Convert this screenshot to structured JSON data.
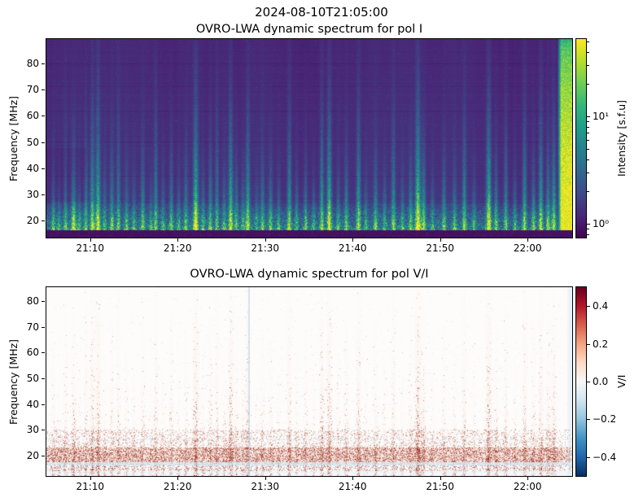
{
  "figure": {
    "suptitle": "2024-08-10T21:05:00",
    "background": "#ffffff",
    "text_color": "#000000"
  },
  "panels": [
    {
      "title": "OVRO-LWA dynamic spectrum for pol I",
      "ylabel": "Frequency [MHz]",
      "yticks": [
        80,
        70,
        60,
        50,
        40,
        30,
        20
      ],
      "xticks": [
        "21:10",
        "21:20",
        "21:30",
        "21:40",
        "21:50",
        "22:00"
      ],
      "colorbar": {
        "label": "Intensity [s.f.u]",
        "scale": "log",
        "ticks": [
          {
            "label": "10¹",
            "value": 10
          },
          {
            "label": "10⁰",
            "value": 1
          }
        ],
        "minor_tick_values": [
          0.8,
          0.9,
          2,
          3,
          4,
          5,
          6,
          7,
          8,
          9,
          20,
          30,
          40,
          50
        ],
        "colormap": "viridis"
      }
    },
    {
      "title": "OVRO-LWA dynamic spectrum for pol V/I",
      "ylabel": "Frequency [MHz]",
      "yticks": [
        80,
        70,
        60,
        50,
        40,
        30,
        20
      ],
      "xticks": [
        "21:10",
        "21:20",
        "21:30",
        "21:40",
        "21:50",
        "22:00"
      ],
      "colorbar": {
        "label": "V/I",
        "scale": "linear",
        "ticks": [
          {
            "label": "0.4",
            "value": 0.4
          },
          {
            "label": "0.2",
            "value": 0.2
          },
          {
            "label": "0.0",
            "value": 0.0
          },
          {
            "label": "−0.2",
            "value": -0.2
          },
          {
            "label": "−0.4",
            "value": -0.4
          }
        ],
        "minor_tick_values": [],
        "colormap": "RdBu_r"
      }
    }
  ],
  "colormaps": {
    "viridis": [
      "#440154",
      "#482878",
      "#3e4a89",
      "#31688e",
      "#26828e",
      "#1f9e89",
      "#35b779",
      "#6ece58",
      "#b5de2b",
      "#fde725"
    ],
    "RdBu_r": [
      "#053061",
      "#2166ac",
      "#4393c3",
      "#92c5de",
      "#d1e5f0",
      "#f7f7f7",
      "#fddbc7",
      "#f4a582",
      "#d6604d",
      "#b2182b",
      "#67001f"
    ]
  },
  "chart_data": [
    {
      "type": "heatmap",
      "title": "OVRO-LWA dynamic spectrum for pol I",
      "x_axis": {
        "start": "21:05",
        "end": "22:05",
        "ticks": [
          "21:10",
          "21:20",
          "21:30",
          "21:40",
          "21:50",
          "22:00"
        ],
        "tick_interval_min": 10
      },
      "y_axis": {
        "label": "Frequency [MHz]",
        "min": 13.5,
        "max": 89.3,
        "ticks": [
          20,
          30,
          40,
          50,
          60,
          70,
          80
        ]
      },
      "color_axis": {
        "label": "Intensity [s.f.u]",
        "scale": "log",
        "vmin": 0.74,
        "vmax": 52,
        "colormap": "viridis",
        "labeled_ticks": [
          1,
          10
        ]
      },
      "features": {
        "description": "groups of solar radio bursts: vertical teal/green streaks rising from low frequencies; bright yellow-green speckle band below ~30 MHz; dark masked band at lowest frequencies; strong broadband yellow emission at right edge",
        "background_intensity_sfu": 1.2,
        "active_band_mhz": [
          15,
          30
        ],
        "masked_band_mhz": [
          13.5,
          15.5
        ],
        "bright_feature": {
          "t_start_min": 58.3,
          "t_end_min": 60.1,
          "freq_range_mhz": [
            15.5,
            89.3
          ],
          "strength": 1.0
        },
        "bursts_t_min_strength_heightfrac": [
          [
            0.7,
            0.55,
            0.45
          ],
          [
            1.4,
            0.45,
            0.3
          ],
          [
            2.1,
            0.5,
            0.6
          ],
          [
            3.1,
            0.85,
            0.55
          ],
          [
            3.7,
            0.5,
            0.35
          ],
          [
            4.5,
            0.55,
            0.7
          ],
          [
            5.2,
            0.7,
            0.9
          ],
          [
            5.9,
            0.8,
            0.95
          ],
          [
            6.6,
            0.5,
            0.4
          ],
          [
            7.4,
            0.6,
            0.55
          ],
          [
            8.2,
            0.5,
            0.8
          ],
          [
            9.1,
            0.55,
            0.4
          ],
          [
            10.0,
            0.5,
            0.35
          ],
          [
            11.0,
            0.6,
            0.55
          ],
          [
            11.9,
            0.5,
            0.3
          ],
          [
            12.5,
            0.55,
            0.9
          ],
          [
            13.3,
            0.5,
            0.4
          ],
          [
            14.2,
            0.55,
            0.6
          ],
          [
            15.1,
            0.5,
            0.35
          ],
          [
            15.9,
            0.6,
            0.5
          ],
          [
            17.0,
            0.9,
            0.95
          ],
          [
            17.9,
            0.55,
            0.4
          ],
          [
            18.7,
            0.6,
            0.6
          ],
          [
            19.4,
            0.5,
            0.85
          ],
          [
            20.3,
            0.55,
            0.4
          ],
          [
            21.0,
            0.8,
            0.95
          ],
          [
            21.7,
            0.6,
            0.5
          ],
          [
            22.4,
            0.55,
            0.4
          ],
          [
            23.0,
            0.7,
            0.9
          ],
          [
            24.0,
            0.5,
            0.3
          ],
          [
            24.7,
            0.55,
            0.5
          ],
          [
            25.6,
            0.6,
            0.45
          ],
          [
            26.5,
            0.5,
            0.35
          ],
          [
            27.7,
            0.65,
            0.85
          ],
          [
            28.6,
            0.5,
            0.4
          ],
          [
            29.6,
            0.55,
            0.5
          ],
          [
            30.5,
            0.5,
            0.35
          ],
          [
            31.4,
            0.65,
            0.9
          ],
          [
            32.3,
            0.85,
            0.95
          ],
          [
            33.3,
            0.5,
            0.4
          ],
          [
            34.2,
            0.6,
            0.55
          ],
          [
            35.6,
            0.7,
            0.85
          ],
          [
            36.5,
            0.5,
            0.35
          ],
          [
            37.6,
            0.6,
            0.5
          ],
          [
            38.6,
            0.5,
            0.4
          ],
          [
            39.6,
            0.6,
            0.75
          ],
          [
            40.7,
            0.5,
            0.35
          ],
          [
            41.6,
            0.6,
            0.5
          ],
          [
            42.4,
            1.0,
            1.0
          ],
          [
            43.1,
            0.7,
            0.6
          ],
          [
            44.1,
            0.5,
            0.35
          ],
          [
            45.4,
            0.6,
            0.5
          ],
          [
            46.6,
            0.55,
            0.4
          ],
          [
            47.7,
            0.6,
            0.8
          ],
          [
            48.8,
            0.5,
            0.35
          ],
          [
            50.5,
            0.9,
            0.95
          ],
          [
            51.4,
            0.6,
            0.5
          ],
          [
            52.5,
            0.55,
            0.75
          ],
          [
            53.5,
            0.5,
            0.4
          ],
          [
            54.6,
            0.65,
            0.85
          ],
          [
            55.6,
            0.6,
            0.5
          ],
          [
            56.5,
            0.7,
            0.9
          ],
          [
            57.3,
            0.65,
            0.6
          ],
          [
            58.0,
            0.7,
            0.8
          ]
        ]
      }
    },
    {
      "type": "heatmap",
      "title": "OVRO-LWA dynamic spectrum for pol V/I",
      "x_axis": {
        "start": "21:05",
        "end": "22:05",
        "ticks": [
          "21:10",
          "21:20",
          "21:30",
          "21:40",
          "21:50",
          "22:00"
        ],
        "tick_interval_min": 10
      },
      "y_axis": {
        "label": "Frequency [MHz]",
        "min": 12.1,
        "max": 85.4,
        "ticks": [
          20,
          30,
          40,
          50,
          60,
          70,
          80
        ]
      },
      "color_axis": {
        "label": "V/I",
        "scale": "linear",
        "vmin": -0.5,
        "vmax": 0.5,
        "colormap": "RdBu_r",
        "labeled_ticks": [
          0.4,
          0.2,
          0.0,
          -0.2,
          -0.4
        ]
      },
      "features": {
        "description": "white background with positively polarized (red) speckled vertical streaks at burst times, strongest below ~35 MHz; dense dark-red band near 18-23 MHz; pale blue bands near the lowest frequencies; faint blue vertical line near 21:28 and pale blue column at right edge",
        "dense_red_band_mhz": [
          17.5,
          23
        ],
        "moderate_red_band_mhz": [
          23,
          30
        ],
        "blue_bands_mhz": [
          [
            14.5,
            17.2
          ],
          [
            26.5,
            27.5
          ]
        ],
        "blue_vertical_line_t_min": 23.2,
        "right_edge_blue_t_min": [
          58.3,
          60.1
        ]
      }
    }
  ]
}
